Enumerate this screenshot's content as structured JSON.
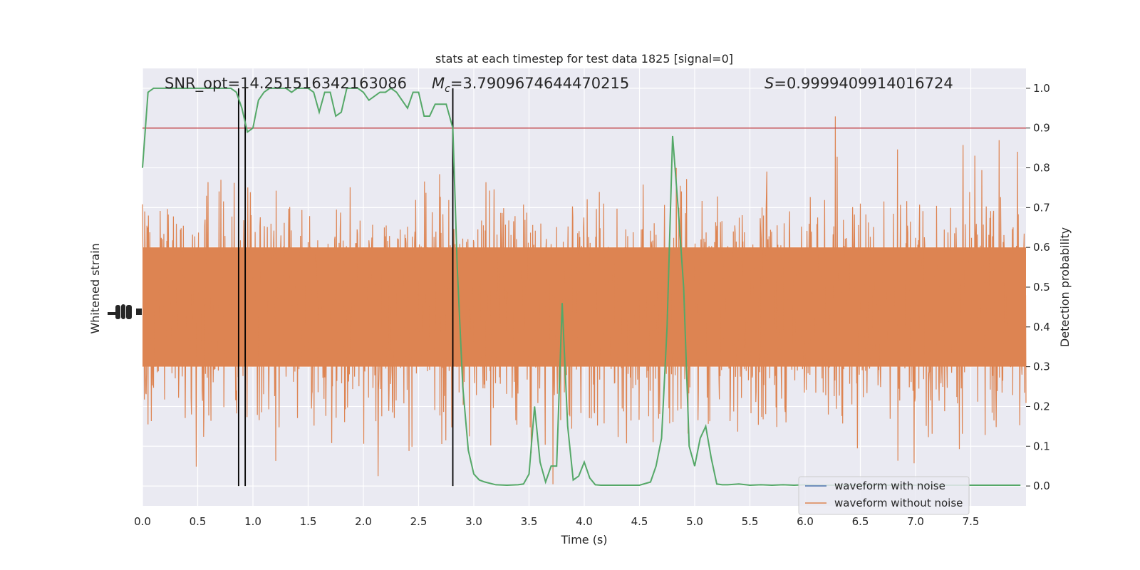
{
  "chart_data": {
    "type": "line",
    "title": "stats at each timestep for test data 1825 [signal=0]",
    "xlabel": "Time (s)",
    "ylabel_left": "Whitened strain",
    "ylabel_right": "Detection probability",
    "xlim": [
      0,
      8.0
    ],
    "ylim_right": [
      -0.05,
      1.05
    ],
    "x_ticks": [
      "0.0",
      "0.5",
      "1.0",
      "1.5",
      "2.0",
      "2.5",
      "3.0",
      "3.5",
      "4.0",
      "4.5",
      "5.0",
      "5.5",
      "6.0",
      "6.5",
      "7.0",
      "7.5"
    ],
    "y_ticks_right": [
      "0.0",
      "0.1",
      "0.2",
      "0.3",
      "0.4",
      "0.5",
      "0.6",
      "0.7",
      "0.8",
      "0.9",
      "1.0"
    ],
    "grid": true,
    "legend_position": "lower-right",
    "annotations": {
      "snr": "SNR_opt=14.251516342163086",
      "mc_symbol": "M",
      "mc_sub": "c",
      "mc_value": "=3.7909674644470215",
      "s_symbol": "S",
      "s_value": "=0.9999409914016724"
    },
    "threshold": 0.9,
    "vlines": [
      0.87,
      0.93,
      2.81
    ],
    "series": [
      {
        "name": "waveform with noise",
        "color": "#4c72b0"
      },
      {
        "name": "waveform without noise",
        "color": "#dd8452"
      },
      {
        "color": "#55a868",
        "x": [
          0.0,
          0.05,
          0.1,
          0.15,
          0.2,
          0.25,
          0.3,
          0.35,
          0.4,
          0.45,
          0.5,
          0.55,
          0.6,
          0.65,
          0.7,
          0.75,
          0.8,
          0.85,
          0.9,
          0.95,
          1.0,
          1.05,
          1.1,
          1.15,
          1.2,
          1.25,
          1.3,
          1.35,
          1.4,
          1.45,
          1.5,
          1.55,
          1.6,
          1.65,
          1.7,
          1.75,
          1.8,
          1.85,
          1.9,
          1.95,
          2.0,
          2.05,
          2.1,
          2.15,
          2.2,
          2.25,
          2.3,
          2.35,
          2.4,
          2.45,
          2.5,
          2.55,
          2.6,
          2.65,
          2.7,
          2.75,
          2.81,
          2.85,
          2.9,
          2.95,
          3.0,
          3.05,
          3.1,
          3.2,
          3.3,
          3.4,
          3.45,
          3.5,
          3.55,
          3.6,
          3.65,
          3.7,
          3.75,
          3.8,
          3.85,
          3.9,
          3.95,
          4.0,
          4.05,
          4.1,
          4.15,
          4.2,
          4.3,
          4.4,
          4.5,
          4.6,
          4.65,
          4.7,
          4.75,
          4.8,
          4.85,
          4.9,
          4.95,
          5.0,
          5.05,
          5.1,
          5.15,
          5.2,
          5.25,
          5.3,
          5.4,
          5.5,
          5.6,
          5.7,
          5.8,
          5.9,
          6.0,
          6.2,
          6.4,
          6.6,
          6.8,
          7.0,
          7.2,
          7.4,
          7.6,
          7.8,
          7.95
        ],
        "values": [
          0.8,
          0.99,
          1.0,
          1.0,
          1.0,
          1.0,
          1.0,
          1.0,
          1.0,
          1.0,
          1.0,
          1.0,
          1.0,
          1.0,
          1.0,
          1.0,
          1.0,
          0.99,
          0.95,
          0.89,
          0.9,
          0.97,
          0.99,
          1.0,
          1.0,
          1.0,
          1.0,
          0.99,
          1.0,
          1.0,
          1.0,
          0.99,
          0.94,
          0.99,
          0.99,
          0.93,
          0.94,
          1.0,
          1.0,
          1.0,
          0.99,
          0.97,
          0.98,
          0.99,
          0.99,
          1.0,
          0.99,
          0.97,
          0.95,
          0.99,
          0.99,
          0.93,
          0.93,
          0.96,
          0.96,
          0.96,
          0.9,
          0.55,
          0.25,
          0.09,
          0.03,
          0.015,
          0.01,
          0.003,
          0.002,
          0.003,
          0.005,
          0.03,
          0.2,
          0.06,
          0.01,
          0.05,
          0.05,
          0.46,
          0.15,
          0.015,
          0.025,
          0.06,
          0.02,
          0.003,
          0.002,
          0.002,
          0.002,
          0.002,
          0.002,
          0.01,
          0.05,
          0.12,
          0.4,
          0.88,
          0.7,
          0.5,
          0.1,
          0.05,
          0.12,
          0.15,
          0.07,
          0.005,
          0.003,
          0.003,
          0.005,
          0.002,
          0.003,
          0.002,
          0.003,
          0.002,
          0.003,
          0.002,
          0.002,
          0.002,
          0.002,
          0.002,
          0.002,
          0.002,
          0.002,
          0.002,
          0.002
        ]
      }
    ]
  }
}
